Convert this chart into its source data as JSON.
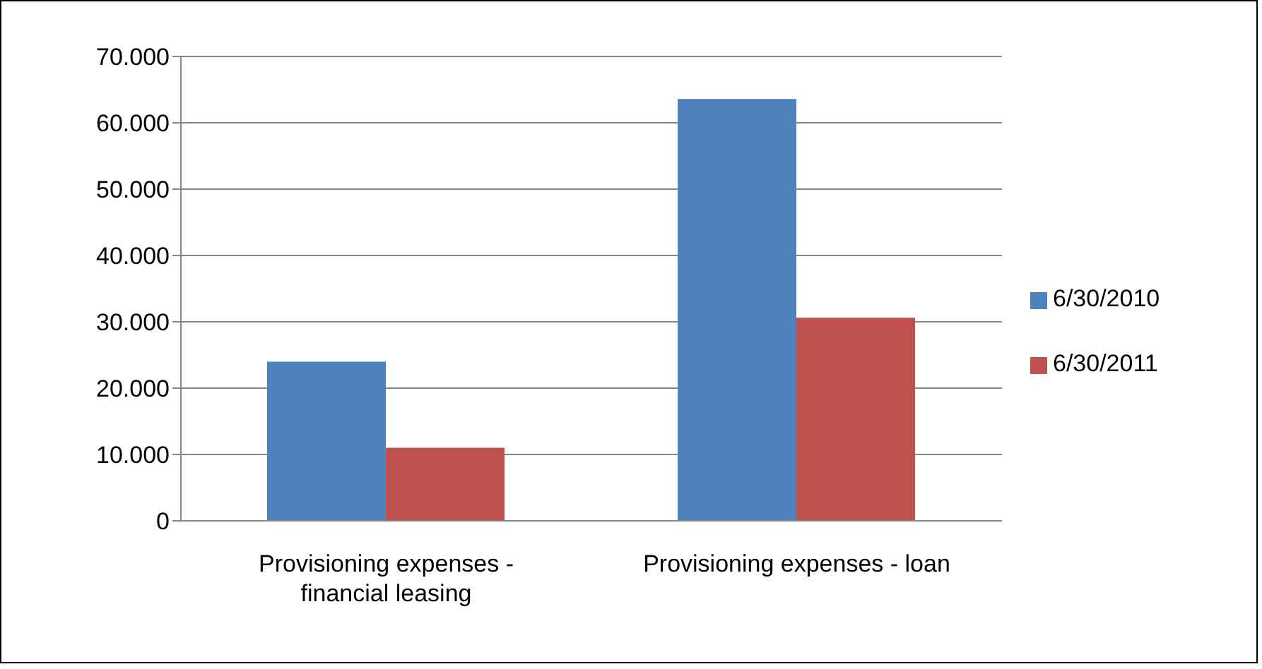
{
  "chart_data": {
    "type": "bar",
    "categories": [
      "Provisioning expenses - financial leasing",
      "Provisioning expenses - loan"
    ],
    "series": [
      {
        "name": "6/30/2010",
        "color": "#4f81bd",
        "values": [
          24000,
          63600
        ]
      },
      {
        "name": "6/30/2011",
        "color": "#c0504d",
        "values": [
          11000,
          30600
        ]
      }
    ],
    "ylim": [
      0,
      70000
    ],
    "yticks": [
      {
        "value": 0,
        "label": "0"
      },
      {
        "value": 10000,
        "label": "10.000"
      },
      {
        "value": 20000,
        "label": "20.000"
      },
      {
        "value": 30000,
        "label": "30.000"
      },
      {
        "value": 40000,
        "label": "40.000"
      },
      {
        "value": 50000,
        "label": "50.000"
      },
      {
        "value": 60000,
        "label": "60.000"
      },
      {
        "value": 70000,
        "label": "70.000"
      }
    ],
    "grid": "y",
    "legend": "right"
  }
}
